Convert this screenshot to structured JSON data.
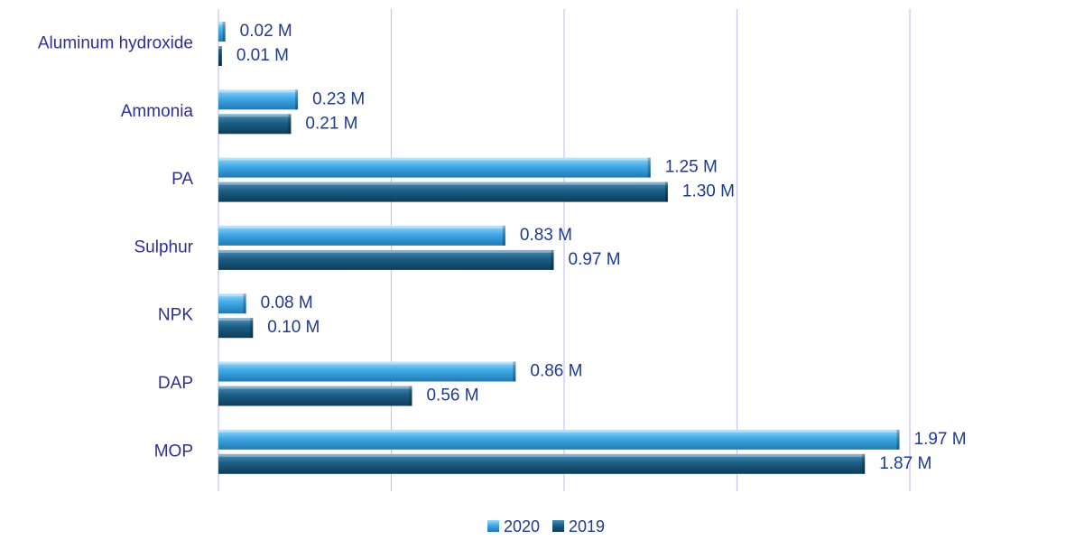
{
  "chart_data": {
    "type": "bar",
    "orientation": "horizontal",
    "categories": [
      "Aluminum hydroxide",
      "Ammonia",
      "PA",
      "Sulphur",
      "NPK",
      "DAP",
      "MOP"
    ],
    "series": [
      {
        "name": "2020",
        "values": [
          0.02,
          0.23,
          1.25,
          0.83,
          0.08,
          0.86,
          1.97
        ],
        "labels": [
          "0.02 M",
          "0.23 M",
          "1.25 M",
          "0.83 M",
          "0.08 M",
          "0.86 M",
          "1.97 M"
        ],
        "color": "#3fa9e6"
      },
      {
        "name": "2019",
        "values": [
          0.01,
          0.21,
          1.3,
          0.97,
          0.1,
          0.56,
          1.87
        ],
        "labels": [
          "0.01 M",
          "0.21 M",
          "1.30 M",
          "0.97 M",
          "0.10 M",
          "0.56 M",
          "1.87 M"
        ],
        "color": "#1b5e85"
      }
    ],
    "xlim": [
      0,
      2.0
    ],
    "grid": true,
    "legend_position": "bottom",
    "title": "",
    "xlabel": "",
    "ylabel": ""
  }
}
